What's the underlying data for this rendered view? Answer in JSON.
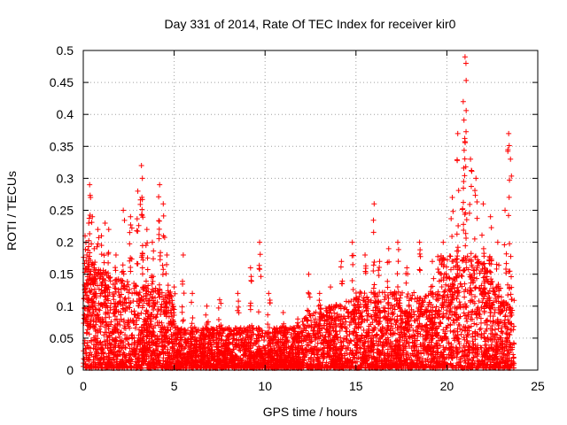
{
  "chart_data": {
    "type": "scatter",
    "title": "Day 331 of 2014, Rate Of TEC Index for receiver kir0",
    "xlabel": "GPS time / hours",
    "ylabel": "ROTI / TECUs",
    "xlim": [
      0,
      25
    ],
    "ylim": [
      0,
      0.5
    ],
    "xticks": [
      "0",
      "5",
      "10",
      "15",
      "20",
      "25"
    ],
    "yticks": [
      "0",
      "0.05",
      "0.1",
      "0.15",
      "0.2",
      "0.25",
      "0.3",
      "0.35",
      "0.4",
      "0.45",
      "0.5"
    ],
    "grid": true,
    "marker": "plus",
    "color": "#ff0000",
    "series": [
      {
        "x": [
          0.1,
          0.2,
          0.3,
          0.35,
          0.4,
          0.5,
          0.6,
          0.8,
          1.0,
          1.2,
          1.4,
          1.8,
          2.2,
          2.6,
          3.0,
          3.2,
          3.25,
          3.5,
          3.8,
          4.2,
          4.4,
          4.6,
          5.0,
          5.5,
          6.0,
          6.8,
          7.5,
          8.5,
          9.2,
          9.7,
          10.2,
          11.0,
          11.8,
          12.4,
          13.0,
          13.6,
          14.2,
          14.8,
          15.5,
          16.0,
          16.3,
          16.8,
          17.3,
          17.8,
          18.5,
          19.2,
          19.8,
          20.3,
          20.6,
          20.9,
          21.0,
          21.05,
          21.3,
          21.6,
          22.0,
          22.4,
          22.8,
          23.2,
          23.4,
          23.5
        ],
        "y": [
          0.21,
          0.18,
          0.23,
          0.29,
          0.27,
          0.24,
          0.19,
          0.22,
          0.21,
          0.23,
          0.22,
          0.18,
          0.25,
          0.24,
          0.28,
          0.32,
          0.3,
          0.22,
          0.2,
          0.29,
          0.26,
          0.18,
          0.13,
          0.18,
          0.12,
          0.1,
          0.11,
          0.12,
          0.16,
          0.2,
          0.12,
          0.09,
          0.08,
          0.15,
          0.12,
          0.13,
          0.17,
          0.2,
          0.18,
          0.26,
          0.17,
          0.19,
          0.2,
          0.16,
          0.2,
          0.17,
          0.2,
          0.27,
          0.37,
          0.42,
          0.49,
          0.48,
          0.33,
          0.3,
          0.26,
          0.24,
          0.2,
          0.25,
          0.37,
          0.33
        ]
      }
    ]
  }
}
